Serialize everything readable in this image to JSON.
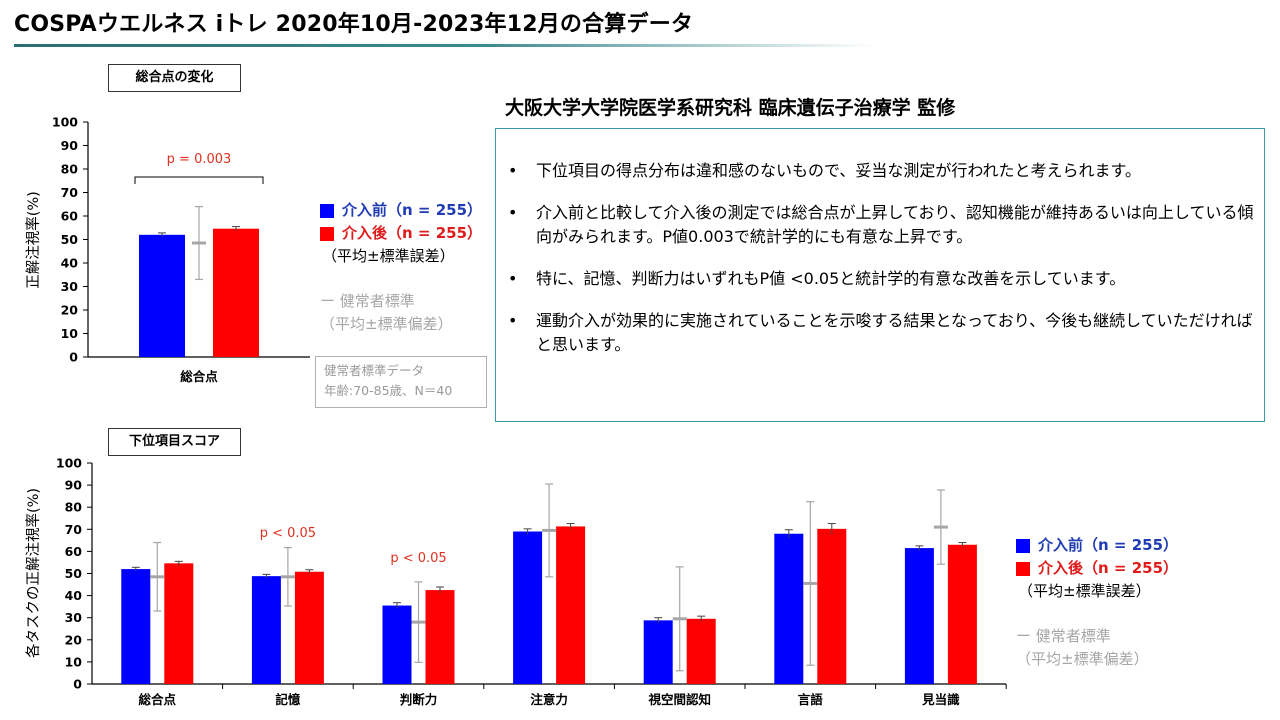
{
  "title": "COSPAウエルネス iトレ 2020年10月-2023年12月の合算データ",
  "supervisor": "大阪大学大学院医学系研究科 臨床遺伝子治療学 監修",
  "section1_label": "総合点の変化",
  "section2_label": "下位項目スコア",
  "bullets": [
    "下位項目の得点分布は違和感のないもので、妥当な測定が行われたと考えられます。",
    "介入前と比較して介入後の測定では総合点が上昇しており、認知機能が維持あるいは向上している傾向がみられます。P値0.003で統計学的にも有意な上昇です。",
    "特に、記憶、判断力はいずれもP値 <0.05と統計学的有意な改善を示しています。",
    "運動介入が効果的に実施されていることを示唆する結果となっており、今後も継続していただければと思います。"
  ],
  "legend": {
    "before": "介入前（n = 255）",
    "after": "介入後（n = 255）",
    "se_note": "（平均±標準誤差）",
    "healthy": "ー 健常者標準",
    "sd_note": "（平均±標準偏差）"
  },
  "reference": {
    "line1": "健常者標準データ",
    "line2": "年齢:70-85歳、N＝40"
  },
  "colors": {
    "before": "#0000ff",
    "after": "#ff0000",
    "healthy": "#a6a6a6",
    "pvalue": "#e0301e",
    "accent": "#2a6e72"
  },
  "chart_data": [
    {
      "type": "bar",
      "ylabel": "正解注視率(%)",
      "ylim": [
        0,
        100
      ],
      "yticks": [
        "0",
        "10",
        "20",
        "30",
        "40",
        "50",
        "60",
        "70",
        "80",
        "90",
        "100"
      ],
      "categories": [
        "総合点"
      ],
      "series": [
        {
          "name": "介入前（n = 255）",
          "values": [
            52
          ],
          "errors": [
            0.8
          ]
        },
        {
          "name": "介入後（n = 255）",
          "values": [
            54.6
          ],
          "errors": [
            0.9
          ]
        }
      ],
      "healthy_standard": {
        "mean": [
          48.5
        ],
        "sd": [
          15.5
        ]
      },
      "annotations": [
        {
          "category": 0,
          "text": "p = 0.003",
          "bracket": true
        }
      ]
    },
    {
      "type": "bar",
      "ylabel": "各タスクの正解注視率(%)",
      "ylim": [
        0,
        100
      ],
      "yticks": [
        "0",
        "10",
        "20",
        "30",
        "40",
        "50",
        "60",
        "70",
        "80",
        "90",
        "100"
      ],
      "categories": [
        "総合点",
        "記憶",
        "判断力",
        "注意力",
        "視空間認知",
        "言語",
        "見当識"
      ],
      "series": [
        {
          "name": "介入前（n = 255）",
          "values": [
            52,
            48.8,
            35.5,
            69,
            28.8,
            68,
            61.5
          ],
          "errors": [
            0.8,
            0.8,
            1.3,
            1.2,
            1.2,
            1.8,
            1.0
          ]
        },
        {
          "name": "介入後（n = 255）",
          "values": [
            54.6,
            50.8,
            42.5,
            71.3,
            29.5,
            70.2,
            63
          ],
          "errors": [
            0.9,
            0.9,
            1.4,
            1.3,
            1.2,
            2.4,
            1.0
          ]
        }
      ],
      "healthy_standard": {
        "mean": [
          48.5,
          48.5,
          28,
          69.5,
          29.5,
          45.5,
          71
        ],
        "sd": [
          15.5,
          13.2,
          18.2,
          21,
          23.5,
          37,
          16.8
        ]
      },
      "annotations": [
        {
          "category": 1,
          "text": "p < 0.05",
          "bracket": false
        },
        {
          "category": 2,
          "text": "p < 0.05",
          "bracket": false
        }
      ]
    }
  ]
}
